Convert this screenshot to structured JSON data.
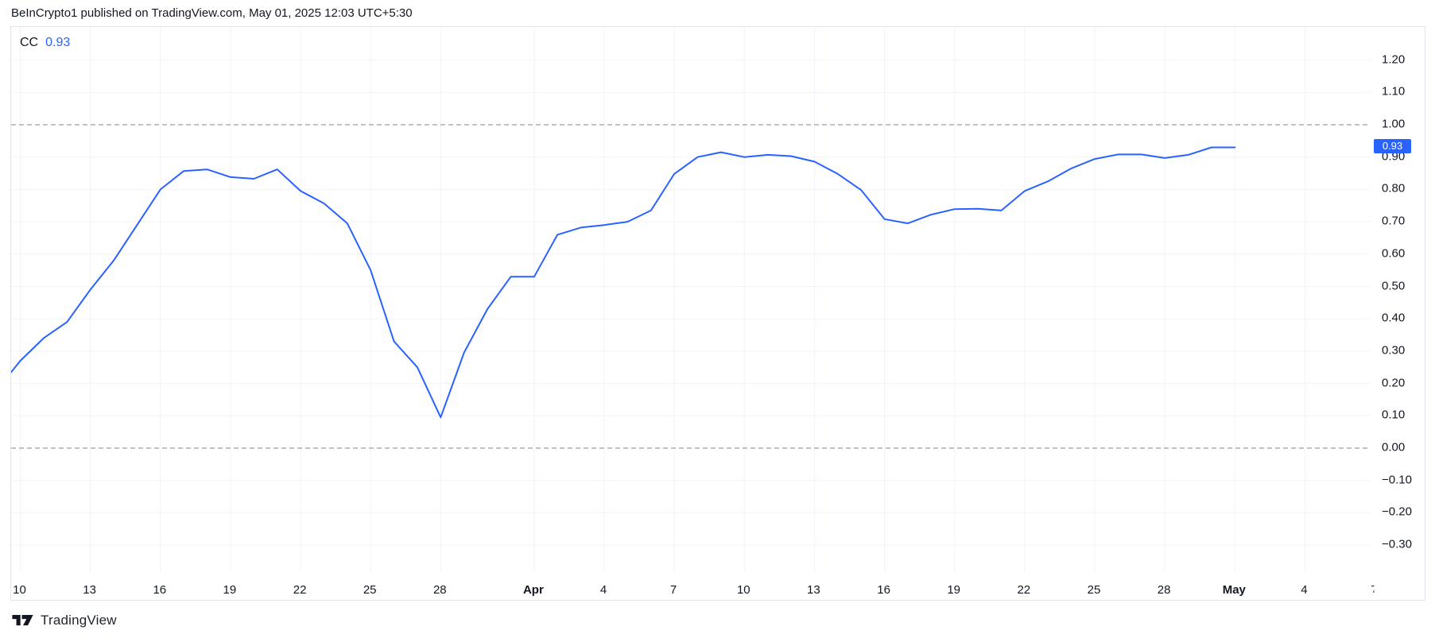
{
  "header": {
    "attribution": "BeInCrypto1 published on TradingView.com, May 01, 2025 12:03 UTC+5:30"
  },
  "legend": {
    "series": "CC",
    "value": "0.93"
  },
  "price_scale": {
    "current_value_badge": "0.93"
  },
  "footer": {
    "brand": "TradingView"
  },
  "colors": {
    "accent": "#2962ff",
    "text": "#131722",
    "grid": "#f0f3fa",
    "dashed": "#80848e",
    "frame": "#e0e3eb",
    "badge_text": "#ffffff"
  },
  "chart_data": {
    "type": "line",
    "grid": true,
    "legend_position": "top-left",
    "last_value": 0.93,
    "dashed_levels": [
      1.0,
      0.0
    ],
    "ylim": [
      -0.38,
      1.3
    ],
    "series": [
      {
        "name": "CC",
        "color": "#2962ff",
        "x": [
          "Mar 9",
          "Mar 10",
          "Mar 11",
          "Mar 12",
          "Mar 13",
          "Mar 14",
          "Mar 15",
          "Mar 16",
          "Mar 17",
          "Mar 18",
          "Mar 19",
          "Mar 20",
          "Mar 21",
          "Mar 22",
          "Mar 23",
          "Mar 24",
          "Mar 25",
          "Mar 26",
          "Mar 27",
          "Mar 28",
          "Mar 29",
          "Mar 30",
          "Mar 31",
          "Apr 1",
          "Apr 2",
          "Apr 3",
          "Apr 4",
          "Apr 5",
          "Apr 6",
          "Apr 7",
          "Apr 8",
          "Apr 9",
          "Apr 10",
          "Apr 11",
          "Apr 12",
          "Apr 13",
          "Apr 14",
          "Apr 15",
          "Apr 16",
          "Apr 17",
          "Apr 18",
          "Apr 19",
          "Apr 20",
          "Apr 21",
          "Apr 22",
          "Apr 23",
          "Apr 24",
          "Apr 25",
          "Apr 26",
          "Apr 27",
          "Apr 28",
          "Apr 29",
          "Apr 30",
          "May 1"
        ],
        "values": [
          0.18,
          0.27,
          0.34,
          0.39,
          0.49,
          0.58,
          0.69,
          0.8,
          0.857,
          0.862,
          0.838,
          0.833,
          0.862,
          0.795,
          0.757,
          0.695,
          0.55,
          0.33,
          0.25,
          0.095,
          0.295,
          0.43,
          0.53,
          0.53,
          0.66,
          0.682,
          0.69,
          0.7,
          0.735,
          0.848,
          0.9,
          0.915,
          0.9,
          0.907,
          0.903,
          0.886,
          0.848,
          0.798,
          0.708,
          0.695,
          0.722,
          0.739,
          0.74,
          0.735,
          0.795,
          0.825,
          0.865,
          0.894,
          0.908,
          0.908,
          0.897,
          0.907,
          0.93,
          0.93
        ]
      }
    ],
    "x_ticks": [
      {
        "label": "10",
        "day": 0
      },
      {
        "label": "13",
        "day": 3
      },
      {
        "label": "16",
        "day": 6
      },
      {
        "label": "19",
        "day": 9
      },
      {
        "label": "22",
        "day": 12
      },
      {
        "label": "25",
        "day": 15
      },
      {
        "label": "28",
        "day": 18
      },
      {
        "label": "Apr",
        "day": 22,
        "bold": true
      },
      {
        "label": "4",
        "day": 25
      },
      {
        "label": "7",
        "day": 28
      },
      {
        "label": "10",
        "day": 31
      },
      {
        "label": "13",
        "day": 34
      },
      {
        "label": "16",
        "day": 37
      },
      {
        "label": "19",
        "day": 40
      },
      {
        "label": "22",
        "day": 43
      },
      {
        "label": "25",
        "day": 46
      },
      {
        "label": "28",
        "day": 49
      },
      {
        "label": "May",
        "day": 52,
        "bold": true
      },
      {
        "label": "4",
        "day": 55
      },
      {
        "label": "7",
        "day": 58,
        "partial": true
      }
    ],
    "y_ticks": [
      {
        "label": "1.20",
        "value": 1.2
      },
      {
        "label": "1.10",
        "value": 1.1
      },
      {
        "label": "1.00",
        "value": 1.0
      },
      {
        "label": "0.90",
        "value": 0.9
      },
      {
        "label": "0.80",
        "value": 0.8
      },
      {
        "label": "0.70",
        "value": 0.7
      },
      {
        "label": "0.60",
        "value": 0.6
      },
      {
        "label": "0.50",
        "value": 0.5
      },
      {
        "label": "0.40",
        "value": 0.4
      },
      {
        "label": "0.30",
        "value": 0.3
      },
      {
        "label": "0.20",
        "value": 0.2
      },
      {
        "label": "0.10",
        "value": 0.1
      },
      {
        "label": "0.00",
        "value": 0.0
      },
      {
        "label": "−0.10",
        "value": -0.1
      },
      {
        "label": "−0.20",
        "value": -0.2
      },
      {
        "label": "−0.30",
        "value": -0.3
      }
    ]
  }
}
